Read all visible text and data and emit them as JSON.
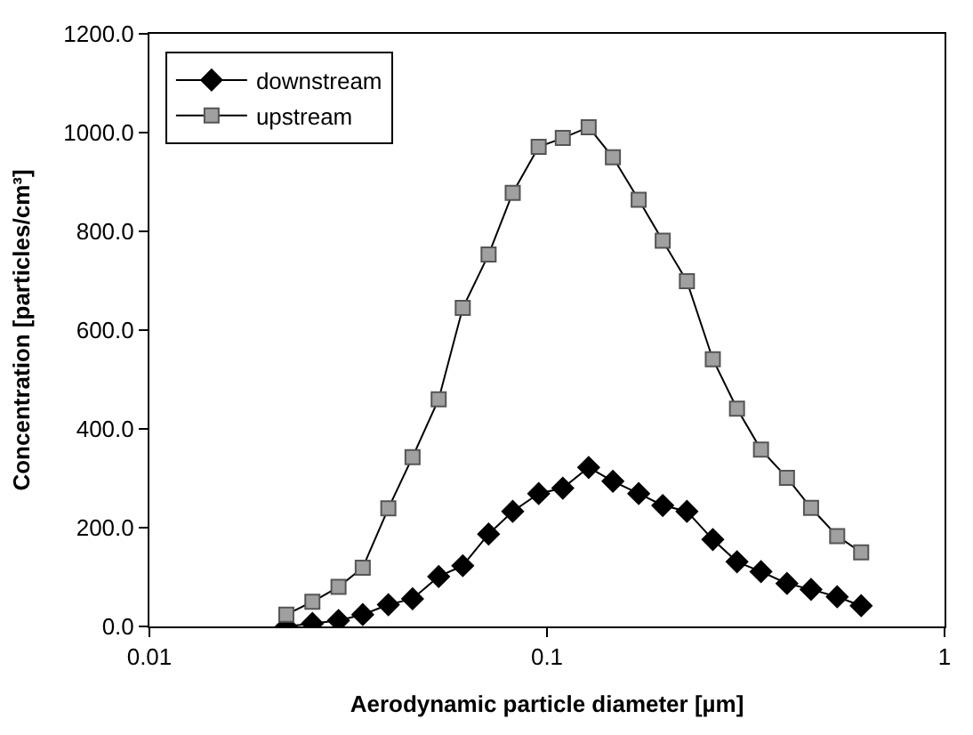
{
  "chart_data": {
    "type": "line",
    "xlabel": "Aerodynamic particle diameter [µm]",
    "ylabel": "Concentration [particles/cm³]",
    "log": "x",
    "x": [
      0.0221,
      0.0257,
      0.0299,
      0.0344,
      0.0399,
      0.0459,
      0.0534,
      0.0614,
      0.0713,
      0.082,
      0.0953,
      0.1096,
      0.1273,
      0.1465,
      0.1701,
      0.1955,
      0.2249,
      0.2613,
      0.3006,
      0.3454,
      0.4015,
      0.4616,
      0.537,
      0.617
    ],
    "xlim": [
      0.01,
      1
    ],
    "xticks": [
      0.01,
      0.1,
      1
    ],
    "ylim": [
      0,
      1200
    ],
    "yticks": [
      {
        "value": 0,
        "label": "0.0"
      },
      {
        "value": 200,
        "label": "200.0"
      },
      {
        "value": 400,
        "label": "400.0"
      },
      {
        "value": 600,
        "label": "600.0"
      },
      {
        "value": 800,
        "label": "800.0"
      },
      {
        "value": 1000,
        "label": "1000.0"
      },
      {
        "value": 1200,
        "label": "1200.0"
      }
    ],
    "legend": "top left",
    "series": [
      {
        "name": "downstream",
        "color": "#000000",
        "marker": "diamond",
        "values": [
          0,
          6,
          12,
          24,
          44,
          56,
          101,
          123,
          187,
          233,
          269,
          280,
          322,
          294,
          269,
          245,
          233,
          176,
          131,
          111,
          87,
          75,
          60,
          42
        ]
      },
      {
        "name": "upstream",
        "color": "#a0a0a0",
        "marker": "square",
        "values": [
          24,
          50,
          80,
          119,
          239,
          343,
          460,
          645,
          753,
          878,
          971,
          989,
          1011,
          950,
          864,
          781,
          699,
          541,
          441,
          358,
          301,
          240,
          183,
          150
        ]
      }
    ]
  }
}
